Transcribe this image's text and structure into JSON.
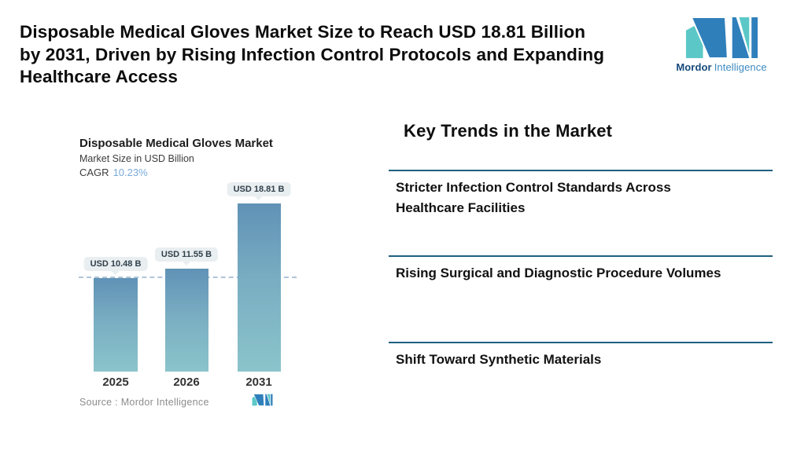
{
  "header": {
    "title_lines": [
      "Disposable Medical Gloves Market Size to Reach USD 18.81 Billion",
      "by 2031, Driven by Rising Infection Control Protocols and Expanding",
      "Healthcare Access"
    ]
  },
  "brand": {
    "word_bold": "Mordor",
    "word_light": "Intelligence"
  },
  "chart": {
    "title": "Disposable Medical Gloves Market",
    "subtitle": "Market Size in USD Billion",
    "cagr_label": "CAGR",
    "cagr_value": "10.23%",
    "source": "Source :  Mordor Intelligence"
  },
  "chart_data": {
    "type": "bar",
    "title": "Disposable Medical Gloves Market",
    "ylabel": "Market Size in USD Billion",
    "categories": [
      "2025",
      "2026",
      "2031"
    ],
    "values": [
      10.48,
      11.55,
      18.81
    ],
    "value_labels": [
      "USD 10.48 B",
      "USD 11.55 B",
      "USD 18.81 B"
    ],
    "annotations": {
      "cagr": "10.23%",
      "dashed_reference_line": "level of 2025 value"
    },
    "ylim": [
      0,
      18.81
    ],
    "grid": false,
    "legend": false
  },
  "trends": {
    "heading": "Key Trends in the Market",
    "items": [
      "Stricter Infection Control Standards Across Healthcare Facilities",
      "Rising Surgical and Diagnostic Procedure Volumes",
      "Shift Toward Synthetic Materials"
    ]
  },
  "colors": {
    "brand_blue": "#2F7FBB",
    "brand_teal": "#5BC8C7",
    "divider": "#1E6080",
    "bar_top": "#6092B6",
    "bar_bottom": "#8BC4CB",
    "cagr_value": "#79ABD9",
    "dash_line": "#AFC4D8",
    "pill_bg": "#E9EEF1"
  }
}
